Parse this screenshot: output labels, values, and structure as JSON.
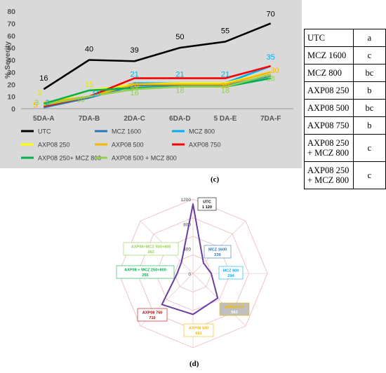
{
  "chart_data": [
    {
      "type": "line",
      "ylabel": "% Severity",
      "ylim": [
        0,
        80
      ],
      "yticks": [
        "0",
        "10",
        "20",
        "30",
        "40",
        "50",
        "60",
        "70",
        "80"
      ],
      "categories": [
        "5DA-A",
        "7DA-B",
        "2DA-C",
        "6DA-D",
        "5 DA-E",
        "7DA-F"
      ],
      "grid": false,
      "legend_position": "bottom",
      "series": [
        {
          "name": "UTC",
          "color": "#000000",
          "values": [
            16,
            40,
            39,
            50,
            55,
            70
          ],
          "labels": [
            "16",
            "40",
            "39",
            "50",
            "55",
            "70"
          ],
          "label_color": "#000000"
        },
        {
          "name": "MCZ 1600",
          "color": "#2e75b6",
          "values": [
            1,
            9,
            19,
            19,
            19,
            27
          ],
          "labels": [],
          "label_color": "#2e75b6"
        },
        {
          "name": "MCZ 800",
          "color": "#00b0f0",
          "values": [
            3,
            10,
            21,
            21,
            21,
            35
          ],
          "labels": [
            "3",
            "10",
            "21",
            "21",
            "21",
            "35"
          ],
          "label_color": "#00b0f0"
        },
        {
          "name": "AXP08 250",
          "color": "#ffff00",
          "values": [
            3,
            15,
            20,
            21,
            21,
            30
          ],
          "labels": [
            "3",
            "15"
          ],
          "label_color": "#e6e600"
        },
        {
          "name": "AXP08 500",
          "color": "#f5b800",
          "values": [
            5,
            10,
            20,
            20,
            20,
            30
          ],
          "labels": [
            "5",
            "",
            "20",
            "",
            "20",
            "30"
          ],
          "label_color": "#f5b800"
        },
        {
          "name": "AXP08 750",
          "color": "#ff0000",
          "values": [
            2,
            10,
            25,
            25,
            25,
            35
          ],
          "labels": [],
          "label_color": "#ff0000"
        },
        {
          "name": "AXP08  250+ MCZ 800",
          "color": "#00b050",
          "values": [
            4,
            15,
            17,
            18,
            18,
            25
          ],
          "labels": [],
          "label_color": "#00b050"
        },
        {
          "name": "AXP08 500 + MCZ 800",
          "color": "#92d050",
          "values": [
            3,
            10,
            16,
            18,
            18,
            28
          ],
          "labels": [
            "3",
            "10",
            "16",
            "18",
            "18",
            "28"
          ],
          "label_color": "#92d050"
        }
      ]
    },
    {
      "type": "radar",
      "rlim": [
        0,
        1200
      ],
      "rticks": [
        "0",
        "400",
        "800",
        "1200"
      ],
      "line_color": "#6a3ea1",
      "grid_color": "#e8b8b8",
      "axes": [
        {
          "label": "UTC",
          "value": 1120,
          "value_label": "1 120",
          "color": "#000000"
        },
        {
          "label": "MCZ 1600",
          "value": 239,
          "value_label": "239",
          "color": "#2e75b6"
        },
        {
          "label": "MCZ 800",
          "value": 294,
          "value_label": "294",
          "color": "#00b0f0"
        },
        {
          "label": "AXP08 250",
          "value": 563,
          "value_label": "563",
          "color": "#f5b800"
        },
        {
          "label": "AXP08 500",
          "value": 661,
          "value_label": "661",
          "color": "#f5b800"
        },
        {
          "label": "AXP08 750",
          "value": 710,
          "value_label": "710",
          "color": "#c00000"
        },
        {
          "label": "AXP08 + MCZ 250+800",
          "value": 255,
          "value_label": "255",
          "color": "#00b050"
        },
        {
          "label": "AXP08+MCZ  500+800",
          "value": 262,
          "value_label": "262",
          "color": "#92d050"
        }
      ]
    }
  ],
  "table": {
    "rows": [
      {
        "label": "UTC",
        "group": "a"
      },
      {
        "label": "MCZ 1600",
        "group": "c"
      },
      {
        "label": "MCZ 800",
        "group": "bc"
      },
      {
        "label": "AXP08 250",
        "group": "b"
      },
      {
        "label": "AXP08 500",
        "group": "bc"
      },
      {
        "label": "AXP08 750",
        "group": "b"
      },
      {
        "label": "AXP08 250 + MCZ 800",
        "group": "c"
      },
      {
        "label": "AXP08 250 + MCZ 800",
        "group": "c"
      }
    ]
  },
  "captions": {
    "c": "(c)",
    "d": "(d)"
  }
}
